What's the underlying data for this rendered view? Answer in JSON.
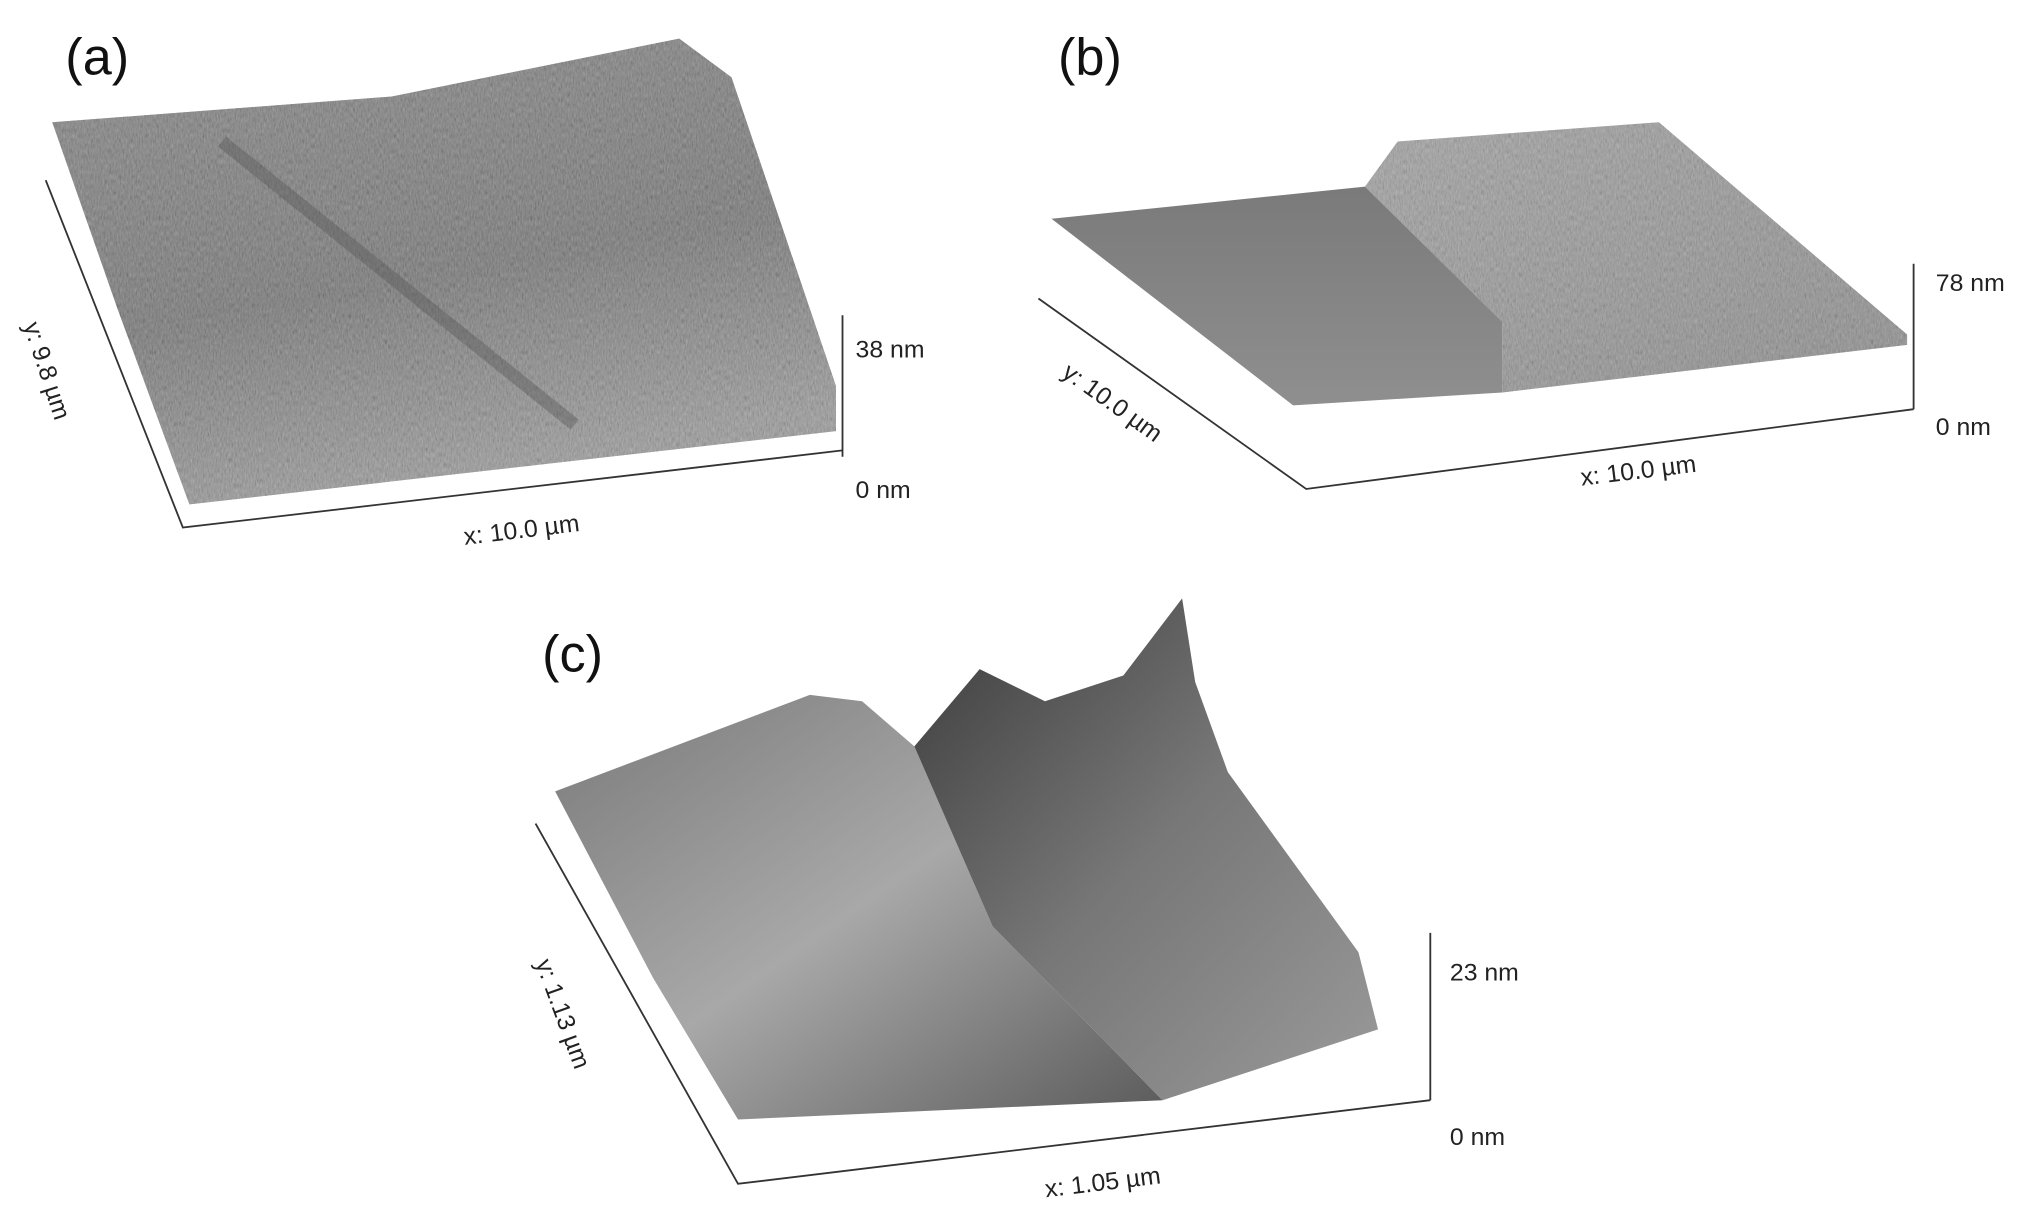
{
  "panels": [
    {
      "label": "(a)",
      "x_label": "x: 10.0 µm",
      "y_label": "y: 9.8 µm",
      "z_top": "38 nm",
      "z_bottom": "0 nm"
    },
    {
      "label": "(b)",
      "x_label": "x: 10.0 µm",
      "y_label": "y: 10.0 µm",
      "z_top": "78 nm",
      "z_bottom": "0 nm"
    },
    {
      "label": "(c)",
      "x_label": "x: 1.05 µm",
      "y_label": "y: 1.13 µm",
      "z_top": "23 nm",
      "z_bottom": "0 nm"
    }
  ]
}
